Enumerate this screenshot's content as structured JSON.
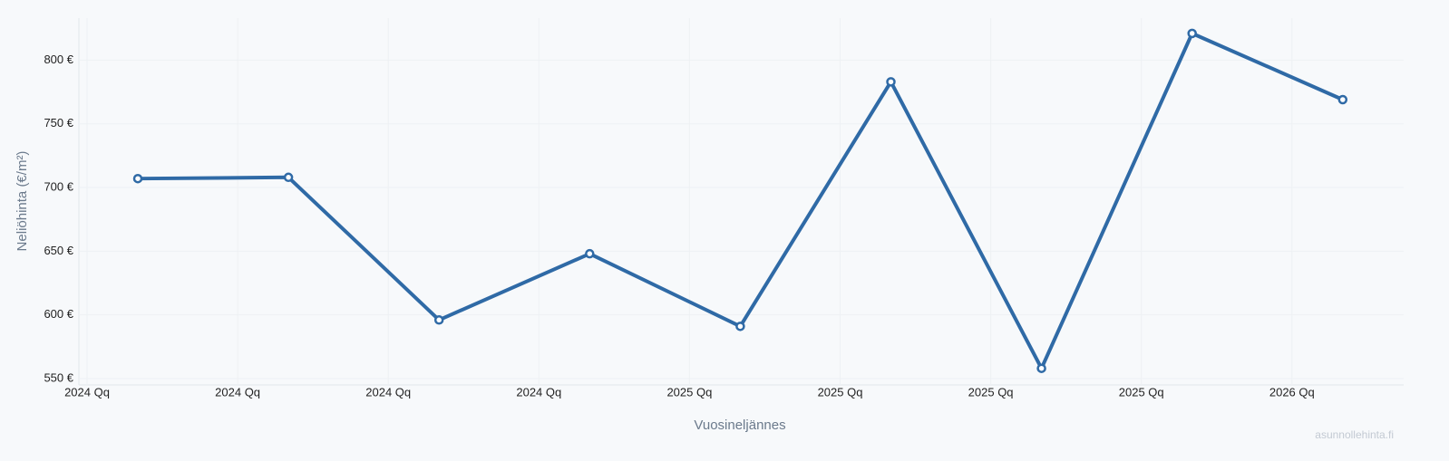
{
  "chart_data": {
    "type": "line",
    "categories": [
      "2024 Qq",
      "2024 Qq",
      "2024 Qq",
      "2024 Qq",
      "2025 Qq",
      "2025 Qq",
      "2025 Qq",
      "2025 Qq",
      "2026 Qq"
    ],
    "series": [
      {
        "color": "#2f6aa6",
        "values": [
          707,
          708,
          596,
          648,
          591,
          783,
          558,
          821,
          769
        ]
      }
    ],
    "ylim": [
      545,
      833
    ],
    "yticks": [
      {
        "value": 550,
        "label": "550 €"
      },
      {
        "value": 600,
        "label": "600 €"
      },
      {
        "value": 650,
        "label": "650 €"
      },
      {
        "value": 700,
        "label": "700 €"
      },
      {
        "value": 750,
        "label": "750 €"
      },
      {
        "value": 800,
        "label": "800 €"
      }
    ],
    "xlabel": "Vuosineljännes",
    "ylabel": "Neliöhinta (€/m²)",
    "watermark": "asunnollehinta.fi",
    "grid": true
  }
}
